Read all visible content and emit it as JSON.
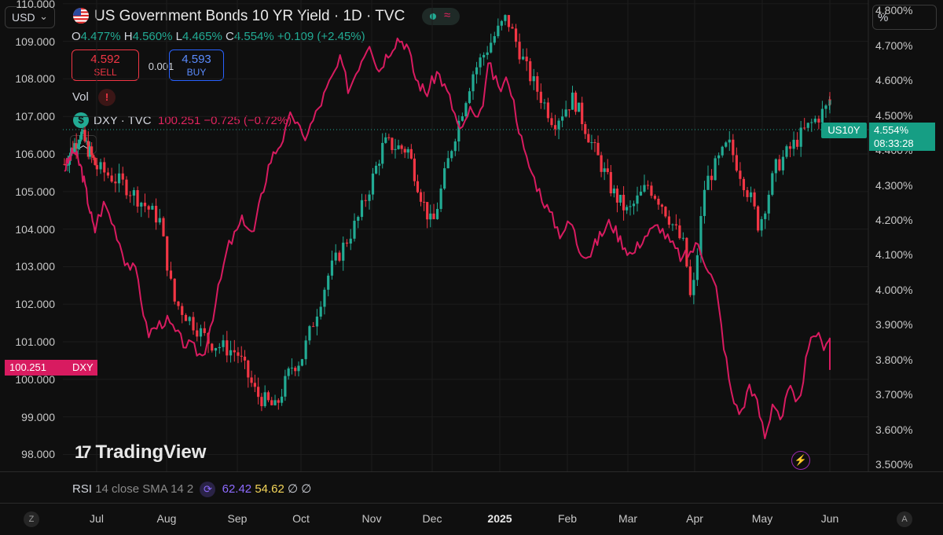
{
  "header": {
    "currency": "USD",
    "title": "US Government Bonds 10 YR Yield · 1D · TVC",
    "scale_button": "%",
    "ohlc": {
      "o_label": "O",
      "o": "4.477%",
      "h_label": "H",
      "h": "4.560%",
      "l_label": "L",
      "l": "4.465%",
      "c_label": "C",
      "c": "4.554%",
      "change": "+0.109 (+2.45%)"
    },
    "sell_price": "4.592",
    "sell_label": "SELL",
    "spread": "0.001",
    "buy_price": "4.593",
    "buy_label": "BUY",
    "vol_label": "Vol",
    "vol_warning": "!",
    "dxy_icon": "$",
    "dxy_name": "DXY · TVC",
    "dxy_values": "100.251 −0.725 (−0.72%)",
    "collapse": "^"
  },
  "price_tags": {
    "dxy_value": "100.251",
    "dxy_name": "DXY",
    "us10y_name": "US10Y",
    "us10y_value": "4.554%",
    "us10y_countdown": "08:33:28"
  },
  "branding": {
    "logo_text": "TradingView",
    "logo_mark": "17"
  },
  "rsi": {
    "name": "RSI",
    "params": "14 close SMA 14 2",
    "value_rsi": "62.42",
    "value_sma": "54.62",
    "extra": "∅ ∅"
  },
  "corners": {
    "left": "Z",
    "right": "A"
  },
  "colors": {
    "up": "#22ab94",
    "down": "#f23645",
    "dxy": "#d81b60",
    "background": "#0f0f0f"
  },
  "icons": [
    "us-flag-icon",
    "dollar-icon",
    "lightning-icon",
    "rsi-cycle-icon",
    "chevron-down-icon",
    "chevron-up-icon"
  ],
  "chart_data": {
    "type": "candlestick+line",
    "x_labels": [
      "Jul",
      "Aug",
      "Sep",
      "Oct",
      "Nov",
      "Dec",
      "2025",
      "Feb",
      "Mar",
      "Apr",
      "May",
      "Jun"
    ],
    "left_axis": {
      "series": "DXY",
      "ticks": [
        "110.000",
        "109.000",
        "108.000",
        "107.000",
        "106.000",
        "105.000",
        "104.000",
        "103.000",
        "102.000",
        "101.000",
        "100.000",
        "99.000",
        "98.000"
      ],
      "range": [
        97.55,
        110.1
      ]
    },
    "right_axis": {
      "series": "US10Y",
      "ticks": [
        "4.800%",
        "4.700%",
        "4.600%",
        "4.500%",
        "4.400%",
        "4.300%",
        "4.200%",
        "4.100%",
        "4.000%",
        "3.900%",
        "3.800%",
        "3.700%",
        "3.600%",
        "3.500%"
      ],
      "range": [
        3.48,
        4.83
      ]
    },
    "series": [
      {
        "name": "US10Y",
        "kind": "candlestick",
        "anchors": [
          [
            0,
            4.36
          ],
          [
            0.5,
            4.45
          ],
          [
            1,
            4.35
          ],
          [
            1.4,
            4.3
          ],
          [
            1.9,
            4.2
          ],
          [
            2.1,
            3.97
          ],
          [
            2.6,
            3.85
          ],
          [
            3.0,
            3.82
          ],
          [
            3.3,
            3.7
          ],
          [
            3.6,
            3.66
          ],
          [
            3.85,
            3.78
          ],
          [
            4.0,
            3.8
          ],
          [
            4.4,
            4.05
          ],
          [
            4.8,
            4.2
          ],
          [
            5.2,
            4.42
          ],
          [
            5.6,
            4.4
          ],
          [
            5.85,
            4.25
          ],
          [
            6.0,
            4.18
          ],
          [
            6.3,
            4.42
          ],
          [
            6.6,
            4.62
          ],
          [
            6.9,
            4.72
          ],
          [
            7.1,
            4.78
          ],
          [
            7.4,
            4.63
          ],
          [
            7.8,
            4.48
          ],
          [
            8.1,
            4.55
          ],
          [
            8.4,
            4.42
          ],
          [
            8.75,
            4.28
          ],
          [
            9.0,
            4.22
          ],
          [
            9.3,
            4.3
          ],
          [
            9.5,
            4.25
          ],
          [
            9.85,
            4.12
          ],
          [
            9.95,
            3.95
          ],
          [
            10.15,
            4.3
          ],
          [
            10.5,
            4.42
          ],
          [
            10.85,
            4.25
          ],
          [
            10.95,
            4.18
          ],
          [
            11.2,
            4.35
          ],
          [
            11.6,
            4.45
          ],
          [
            11.95,
            4.52
          ],
          [
            12.1,
            4.554
          ]
        ]
      },
      {
        "name": "DXY",
        "kind": "line",
        "anchors": [
          [
            0,
            105.6
          ],
          [
            0.5,
            106.1
          ],
          [
            0.9,
            105.6
          ],
          [
            1.4,
            104.4
          ],
          [
            1.6,
            103.9
          ],
          [
            1.9,
            104.7
          ],
          [
            2.2,
            103.9
          ],
          [
            2.4,
            103.2
          ],
          [
            2.7,
            102.8
          ],
          [
            2.95,
            101.2
          ],
          [
            3.4,
            101.6
          ],
          [
            3.8,
            101.0
          ],
          [
            4.1,
            100.8
          ],
          [
            4.3,
            100.6
          ],
          [
            4.6,
            102.0
          ],
          [
            4.9,
            103.5
          ],
          [
            5.3,
            104.3
          ],
          [
            5.55,
            103.8
          ],
          [
            5.7,
            104.5
          ],
          [
            6.0,
            105.8
          ],
          [
            6.4,
            106.5
          ],
          [
            6.6,
            107.1
          ],
          [
            6.9,
            106.4
          ],
          [
            7.1,
            106.8
          ],
          [
            7.5,
            107.8
          ],
          [
            7.8,
            108.5
          ],
          [
            8.0,
            107.7
          ],
          [
            8.25,
            108.4
          ],
          [
            8.5,
            109.0
          ],
          [
            8.75,
            108.2
          ],
          [
            8.95,
            108.6
          ],
          [
            9.3,
            109.1
          ],
          [
            9.55,
            108.9
          ],
          [
            9.8,
            108.0
          ],
          [
            10.1,
            107.6
          ],
          [
            10.4,
            108.2
          ],
          [
            10.7,
            107.5
          ],
          [
            11.0,
            106.5
          ],
          [
            11.2,
            107.2
          ],
          [
            11.45,
            106.8
          ],
          [
            11.7,
            108.4
          ],
          [
            11.95,
            107.7
          ],
          [
            12.2,
            108.0
          ],
          [
            12.4,
            107.0
          ],
          [
            12.6,
            106.0
          ],
          [
            12.9,
            105.2
          ],
          [
            13.2,
            104.5
          ],
          [
            13.5,
            103.9
          ],
          [
            13.8,
            104.2
          ],
          [
            14.0,
            103.5
          ],
          [
            14.3,
            103.3
          ],
          [
            14.6,
            103.8
          ],
          [
            14.9,
            104.2
          ],
          [
            15.2,
            103.7
          ],
          [
            15.5,
            103.3
          ],
          [
            15.8,
            103.8
          ],
          [
            16.2,
            104.1
          ],
          [
            16.5,
            103.6
          ],
          [
            16.8,
            103.2
          ],
          [
            17.2,
            103.6
          ],
          [
            17.4,
            103.1
          ],
          [
            17.65,
            102.4
          ],
          [
            17.85,
            100.9
          ],
          [
            18.05,
            99.5
          ],
          [
            18.3,
            99.1
          ],
          [
            18.5,
            99.9
          ],
          [
            18.7,
            99.3
          ],
          [
            18.9,
            98.4
          ],
          [
            19.1,
            99.5
          ],
          [
            19.3,
            98.9
          ],
          [
            19.5,
            99.8
          ],
          [
            19.7,
            99.2
          ],
          [
            19.95,
            100.6
          ],
          [
            20.15,
            101.3
          ],
          [
            20.35,
            100.9
          ],
          [
            20.55,
            101.2
          ],
          [
            20.7,
            100.251
          ]
        ]
      }
    ]
  }
}
